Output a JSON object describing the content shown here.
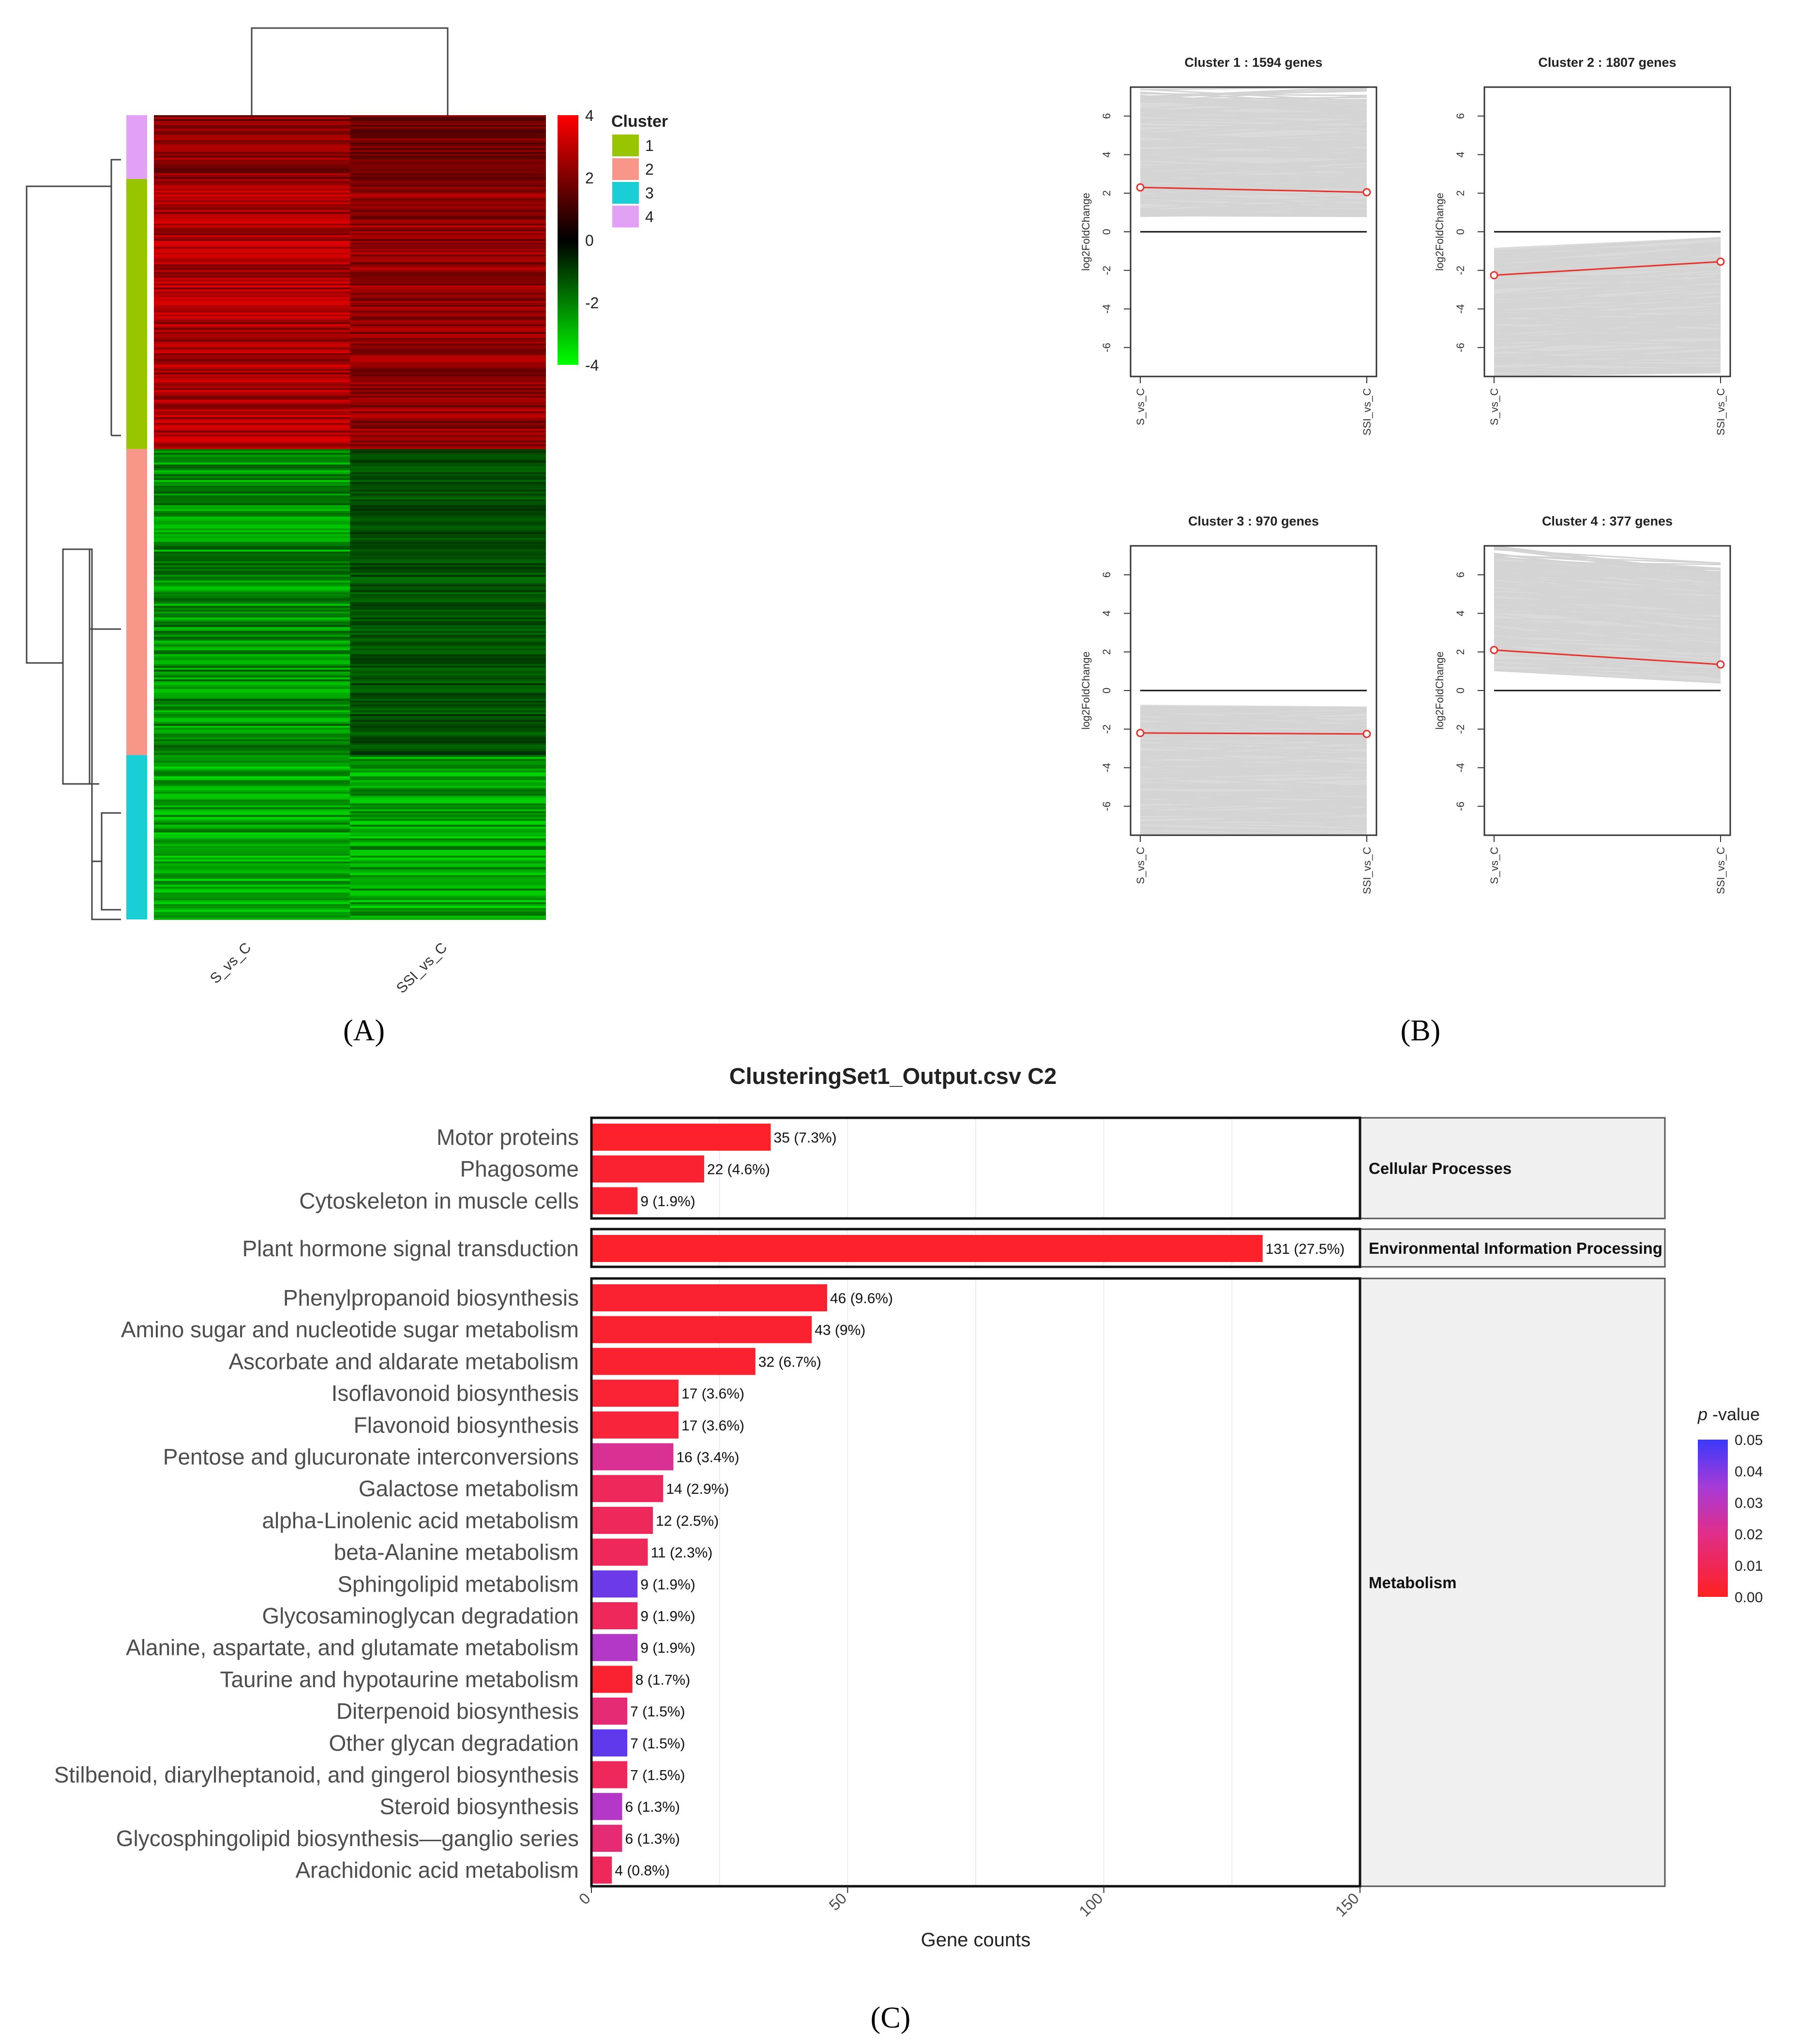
{
  "figure": {
    "panel_labels": [
      "(A)",
      "(B)",
      "(C)"
    ],
    "panel_label_letters": [
      "A",
      "B",
      "C"
    ]
  },
  "chart_data": [
    {
      "id": "A",
      "type": "heatmap",
      "columns": [
        "S_vs_C",
        "SSI_vs_C"
      ],
      "legend_title": "Cluster",
      "clusters": [
        {
          "label": "1",
          "color": "#99C400"
        },
        {
          "label": "2",
          "color": "#F8968A"
        },
        {
          "label": "3",
          "color": "#19CFD5"
        },
        {
          "label": "4",
          "color": "#E3A1F6"
        }
      ],
      "row_order_clusters": [
        "4",
        "1",
        "2",
        "3"
      ],
      "row_fraction": [
        0.0793,
        0.3353,
        0.3801,
        0.2041
      ],
      "colorbar": {
        "min": -4,
        "max": 4,
        "ticks": [
          "4",
          "2",
          "0",
          "-2",
          "-4"
        ],
        "low_color": "#00FF00",
        "mid_color": "#000000",
        "high_color": "#FF0000"
      }
    },
    {
      "id": "B",
      "type": "line",
      "ylabel": "log2FoldChange",
      "x_categories": [
        "S_vs_C",
        "SSI_vs_C"
      ],
      "ylim": [
        -7.5,
        7.5
      ],
      "yticks": [
        "6",
        "4",
        "2",
        "0",
        "-2",
        "-4",
        "-6"
      ],
      "subplots": [
        {
          "title": "Cluster 1 : 1594 genes",
          "mean": [
            2.3,
            2.05
          ],
          "band_low": [
            0.8,
            0.8
          ],
          "band_high": [
            7.5,
            7.5
          ]
        },
        {
          "title": "Cluster 2 : 1807 genes",
          "mean": [
            -2.25,
            -1.55
          ],
          "band_low": [
            -7.5,
            -7.3
          ],
          "band_high": [
            -0.9,
            -0.3
          ]
        },
        {
          "title": "Cluster 3 : 970 genes",
          "mean": [
            -2.2,
            -2.25
          ],
          "band_low": [
            -7.5,
            -7.5
          ],
          "band_high": [
            -0.8,
            -0.9
          ]
        },
        {
          "title": "Cluster 4 : 377 genes",
          "mean": [
            2.1,
            1.35
          ],
          "band_low": [
            1.0,
            0.4
          ],
          "band_high": [
            7.5,
            6.6
          ]
        }
      ]
    },
    {
      "id": "C",
      "type": "bar",
      "orientation": "horizontal",
      "title": "ClusteringSet1_Output.csv C2",
      "xlabel": "Gene counts",
      "xlim": [
        0,
        150
      ],
      "xticks": [
        "0",
        "50",
        "100",
        "150"
      ],
      "legend_title_italic": "p",
      "legend_title_rest": " -value",
      "legend_ticks": [
        "0.05",
        "0.04",
        "0.03",
        "0.02",
        "0.01",
        "0.00"
      ],
      "groups": [
        {
          "name": "Cellular Processes",
          "items": [
            {
              "label": "Motor proteins",
              "value": 35,
              "text": "35 (7.3%)",
              "p": 0.002
            },
            {
              "label": "Phagosome",
              "value": 22,
              "text": "22 (4.6%)",
              "p": 0.003
            },
            {
              "label": "Cytoskeleton in muscle cells",
              "value": 9,
              "text": "9 (1.9%)",
              "p": 0.003
            }
          ]
        },
        {
          "name": "Environmental Information Processing",
          "items": [
            {
              "label": "Plant hormone signal transduction",
              "value": 131,
              "text": "131 (27.5%)",
              "p": 0.002
            }
          ]
        },
        {
          "name": "Metabolism",
          "items": [
            {
              "label": "Phenylpropanoid biosynthesis",
              "value": 46,
              "text": "46 (9.6%)",
              "p": 0.003
            },
            {
              "label": "Amino sugar and nucleotide sugar metabolism",
              "value": 43,
              "text": "43 (9%)",
              "p": 0.003
            },
            {
              "label": "Ascorbate and aldarate metabolism",
              "value": 32,
              "text": "32 (6.7%)",
              "p": 0.003
            },
            {
              "label": "Isoflavonoid biosynthesis",
              "value": 17,
              "text": "17 (3.6%)",
              "p": 0.004
            },
            {
              "label": "Flavonoid biosynthesis",
              "value": 17,
              "text": "17 (3.6%)",
              "p": 0.005
            },
            {
              "label": "Pentose and glucuronate interconversions",
              "value": 16,
              "text": "16 (3.4%)",
              "p": 0.022
            },
            {
              "label": "Galactose metabolism",
              "value": 14,
              "text": "14 (2.9%)",
              "p": 0.011
            },
            {
              "label": "alpha-Linolenic acid metabolism",
              "value": 12,
              "text": "12 (2.5%)",
              "p": 0.011
            },
            {
              "label": "beta-Alanine metabolism",
              "value": 11,
              "text": "11 (2.3%)",
              "p": 0.011
            },
            {
              "label": "Sphingolipid metabolism",
              "value": 9,
              "text": "9 (1.9%)",
              "p": 0.043
            },
            {
              "label": "Glycosaminoglycan degradation",
              "value": 9,
              "text": "9 (1.9%)",
              "p": 0.011
            },
            {
              "label": "Alanine, aspartate, and glutamate metabolism",
              "value": 9,
              "text": "9 (1.9%)",
              "p": 0.032
            },
            {
              "label": "Taurine and hypotaurine metabolism",
              "value": 8,
              "text": "8 (1.7%)",
              "p": 0.003
            },
            {
              "label": "Diterpenoid biosynthesis",
              "value": 7,
              "text": "7 (1.5%)",
              "p": 0.016
            },
            {
              "label": "Other glycan degradation",
              "value": 7,
              "text": "7 (1.5%)",
              "p": 0.045
            },
            {
              "label": "Stilbenoid, diarylheptanoid, and gingerol biosynthesis",
              "value": 7,
              "text": "7 (1.5%)",
              "p": 0.011
            },
            {
              "label": "Steroid biosynthesis",
              "value": 6,
              "text": "6 (1.3%)",
              "p": 0.032
            },
            {
              "label": "Glycosphingolipid biosynthesis—ganglio series",
              "value": 6,
              "text": "6 (1.3%)",
              "p": 0.016
            },
            {
              "label": "Arachidonic acid metabolism",
              "value": 4,
              "text": "4 (0.8%)",
              "p": 0.011
            }
          ]
        }
      ]
    }
  ]
}
